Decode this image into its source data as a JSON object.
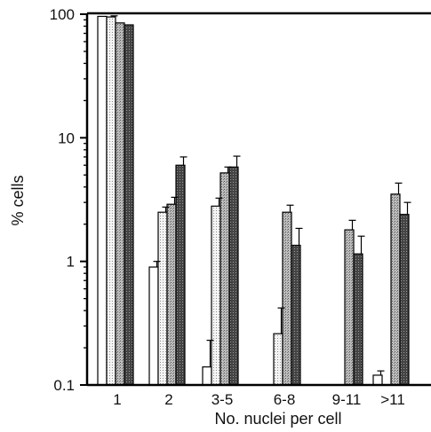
{
  "chart_data": {
    "type": "bar",
    "title": "",
    "xlabel": "No. nuclei per cell",
    "ylabel": "% cells",
    "yscale": "log",
    "ylim": [
      0.1,
      100
    ],
    "yticks": [
      100,
      10,
      1,
      0.1
    ],
    "ytick_labels": [
      "100",
      "10",
      "1",
      "0.1"
    ],
    "grid": false,
    "legend": "none",
    "categories": [
      "1",
      "2",
      "3-5",
      "6-8",
      "9-11",
      ">11"
    ],
    "series": [
      {
        "fill": "#ffffff",
        "pattern": "none",
        "values": [
          96,
          0.9,
          0.14,
          null,
          null,
          0.12
        ],
        "errors": [
          0,
          0.1,
          0.09,
          null,
          null,
          0.01
        ]
      },
      {
        "fill": "#e0e0e0",
        "pattern": "light-dots",
        "values": [
          95,
          2.5,
          2.8,
          0.26,
          null,
          null
        ],
        "errors": [
          2,
          0.25,
          0.45,
          0.16,
          null,
          null
        ]
      },
      {
        "fill": "#b0b0b0",
        "pattern": "medium-dots",
        "values": [
          85,
          2.9,
          5.2,
          2.5,
          1.8,
          3.5
        ],
        "errors": [
          0,
          0.4,
          0.6,
          0.35,
          0.35,
          0.8
        ]
      },
      {
        "fill": "#555555",
        "pattern": "dark-dots",
        "values": [
          82,
          6.0,
          5.8,
          1.35,
          1.15,
          2.4
        ],
        "errors": [
          0,
          1.0,
          1.3,
          0.5,
          0.45,
          0.6
        ]
      }
    ]
  }
}
